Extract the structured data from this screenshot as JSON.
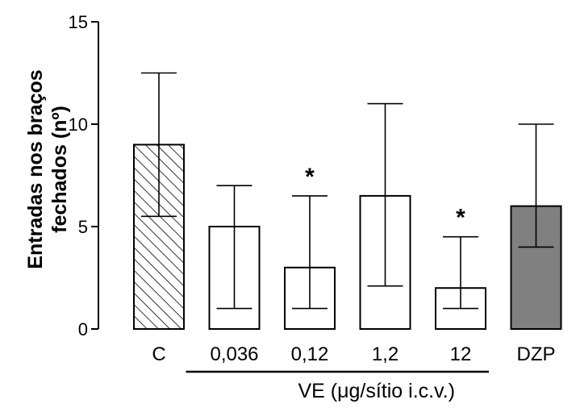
{
  "chart_data": {
    "type": "bar",
    "ylabel_lines": [
      "Entradas nos braços",
      "fechados (nº)"
    ],
    "ylim": [
      0,
      15
    ],
    "yticks": [
      "0",
      "5",
      "10",
      "15"
    ],
    "categories": [
      "C",
      "0,036",
      "0,12",
      "1,2",
      "12",
      "DZP"
    ],
    "values": [
      9,
      5,
      3,
      6.5,
      2,
      6
    ],
    "error_low": [
      5.5,
      1,
      1,
      2.1,
      1,
      4
    ],
    "error_high": [
      12.5,
      7,
      6.5,
      11,
      4.5,
      10
    ],
    "significance": [
      "",
      "",
      "*",
      "",
      "*",
      ""
    ],
    "fills": [
      "hatched",
      "white",
      "white",
      "white",
      "white",
      "#808080"
    ],
    "group_label": "VE (μg/sítio i.c.v.)",
    "grid": false,
    "legend": "none"
  }
}
